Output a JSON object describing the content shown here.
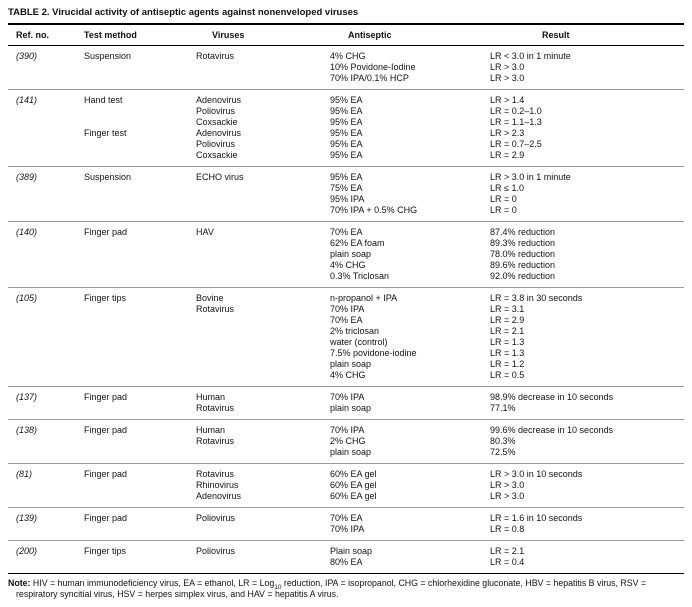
{
  "palette": {
    "background": "#ffffff",
    "text": "#111111",
    "rule_dark": "#000000",
    "rule_light": "#9a9a9a"
  },
  "table": {
    "title": "TABLE 2. Virucidal activity of antiseptic agents against nonenveloped viruses",
    "columns": [
      "Ref. no.",
      "Test method",
      "Viruses",
      "Antiseptic",
      "Result"
    ],
    "groups": [
      {
        "rows": [
          [
            "(390)",
            "Suspension",
            "Rotavirus",
            "4% CHG",
            "LR < 3.0 in 1 minute"
          ],
          [
            "",
            "",
            "",
            "10% Povidone-Iodine",
            "LR > 3.0"
          ],
          [
            "",
            "",
            "",
            "70% IPA/0.1% HCP",
            "LR > 3.0"
          ]
        ]
      },
      {
        "rows": [
          [
            "(141)",
            "Hand test",
            "Adenovirus",
            "95% EA",
            "LR > 1.4"
          ],
          [
            "",
            "",
            "Poliovirus",
            "95% EA",
            "LR = 0.2–1.0"
          ],
          [
            "",
            "",
            "Coxsackie",
            "95% EA",
            "LR = 1.1–1.3"
          ],
          [
            "",
            "Finger test",
            "Adenovirus",
            "95% EA",
            "LR > 2.3"
          ],
          [
            "",
            "",
            "Poliovirus",
            "95% EA",
            "LR = 0.7–2.5"
          ],
          [
            "",
            "",
            "Coxsackie",
            "95% EA",
            "LR = 2.9"
          ]
        ]
      },
      {
        "rows": [
          [
            "(389)",
            "Suspension",
            "ECHO virus",
            "95% EA",
            "LR > 3.0 in 1 minute"
          ],
          [
            "",
            "",
            "",
            "75% EA",
            "LR ≤ 1.0"
          ],
          [
            "",
            "",
            "",
            "95% IPA",
            "LR = 0"
          ],
          [
            "",
            "",
            "",
            "70% IPA + 0.5% CHG",
            "LR = 0"
          ]
        ]
      },
      {
        "rows": [
          [
            "(140)",
            "Finger pad",
            "HAV",
            "70% EA",
            "87.4% reduction"
          ],
          [
            "",
            "",
            "",
            "62% EA foam",
            "89.3% reduction"
          ],
          [
            "",
            "",
            "",
            "plain soap",
            "78.0% reduction"
          ],
          [
            "",
            "",
            "",
            "4% CHG",
            "89.6% reduction"
          ],
          [
            "",
            "",
            "",
            "0.3% Triclosan",
            "92.0% reduction"
          ]
        ]
      },
      {
        "rows": [
          [
            "(105)",
            "Finger tips",
            "Bovine",
            "n-propanol + IPA",
            "LR = 3.8 in 30 seconds"
          ],
          [
            "",
            "",
            "Rotavirus",
            "70% IPA",
            "LR = 3.1"
          ],
          [
            "",
            "",
            "",
            "70% EA",
            "LR = 2.9"
          ],
          [
            "",
            "",
            "",
            "2% triclosan",
            "LR = 2.1"
          ],
          [
            "",
            "",
            "",
            "water (control)",
            "LR = 1.3"
          ],
          [
            "",
            "",
            "",
            "7.5% povidone-iodine",
            "LR = 1.3"
          ],
          [
            "",
            "",
            "",
            "plain soap",
            "LR = 1.2"
          ],
          [
            "",
            "",
            "",
            "4% CHG",
            "LR = 0.5"
          ]
        ]
      },
      {
        "rows": [
          [
            "(137)",
            "Finger pad",
            "Human",
            "70% IPA",
            "98.9% decrease in 10 seconds"
          ],
          [
            "",
            "",
            "Rotavirus",
            "plain soap",
            "77.1%"
          ]
        ]
      },
      {
        "rows": [
          [
            "(138)",
            "Finger pad",
            "Human",
            "70% IPA",
            "99.6% decrease in 10 seconds"
          ],
          [
            "",
            "",
            "Rotavirus",
            "2% CHG",
            "80.3%"
          ],
          [
            "",
            "",
            "",
            "plain soap",
            "72.5%"
          ]
        ]
      },
      {
        "rows": [
          [
            "(81)",
            "Finger pad",
            "Rotavirus",
            "60% EA gel",
            "LR > 3.0 in 10 seconds"
          ],
          [
            "",
            "",
            "Rhinovirus",
            "60% EA gel",
            "LR > 3.0"
          ],
          [
            "",
            "",
            "Adenovirus",
            "60% EA gel",
            "LR > 3.0"
          ]
        ]
      },
      {
        "rows": [
          [
            "(139)",
            "Finger pad",
            "Poliovirus",
            "70% EA",
            "LR = 1.6 in 10 seconds"
          ],
          [
            "",
            "",
            "",
            "70% IPA",
            "LR = 0.8"
          ]
        ]
      },
      {
        "rows": [
          [
            "(200)",
            "Finger tips",
            "Poliovirus",
            "Plain soap",
            "LR = 2.1"
          ],
          [
            "",
            "",
            "",
            "80% EA",
            "LR = 0.4"
          ]
        ]
      }
    ]
  },
  "note": {
    "label": "Note:",
    "text_before_sub": " HIV = human immunodeficiency virus, EA = ethanol, LR = Log",
    "subscript": "10",
    "text_after_sub": " reduction, IPA = isopropanol, CHG = chlorhexidine gluconate, HBV = hepatitis B virus, RSV = respiratory syncitial virus, HSV = herpes simplex virus, and HAV = hepatitis A virus."
  }
}
